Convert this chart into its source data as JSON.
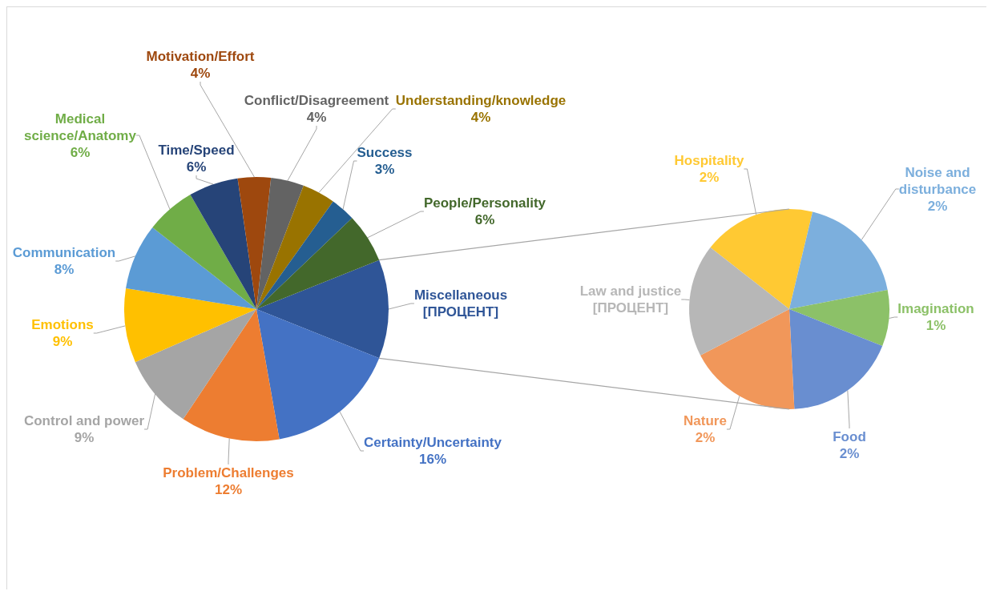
{
  "chart_data": [
    {
      "type": "pie",
      "categories": [
        "Miscellaneous",
        "Certainty/Uncertainty",
        "Problem/Challenges",
        "Control and power",
        "Emotions",
        "Communication",
        "Medical science/Anatomy",
        "Time/Speed",
        "Motivation/Effort",
        "Conflict/Disagreement",
        "Understanding/knowledge",
        "Success",
        "People/Personality"
      ],
      "values": [
        12,
        16,
        12,
        9,
        9,
        8,
        6,
        6,
        4,
        4,
        4,
        3,
        6
      ],
      "value_labels": [
        "[ПРОЦЕНТ]",
        "16%",
        "12%",
        "9%",
        "9%",
        "8%",
        "6%",
        "6%",
        "4%",
        "4%",
        "4%",
        "3%",
        "6%"
      ],
      "colors": [
        "#2f5597",
        "#4472c4",
        "#ed7d31",
        "#a5a5a5",
        "#ffc000",
        "#5b9bd5",
        "#70ad47",
        "#264478",
        "#9e480e",
        "#636363",
        "#997300",
        "#255e91",
        "#43682b"
      ]
    },
    {
      "type": "pie",
      "categories": [
        "Hospitality",
        "Noise and disturbance",
        "Imagination",
        "Food",
        "Nature",
        "Law and justice"
      ],
      "values": [
        2,
        2,
        1,
        2,
        2,
        2
      ],
      "value_labels": [
        "2%",
        "2%",
        "1%",
        "2%",
        "2%",
        "[ПРОЦЕНТ]"
      ],
      "colors": [
        "#ffc933",
        "#7cafdd",
        "#8cc168",
        "#698ed0",
        "#f1975a",
        "#b7b7b7"
      ]
    }
  ]
}
